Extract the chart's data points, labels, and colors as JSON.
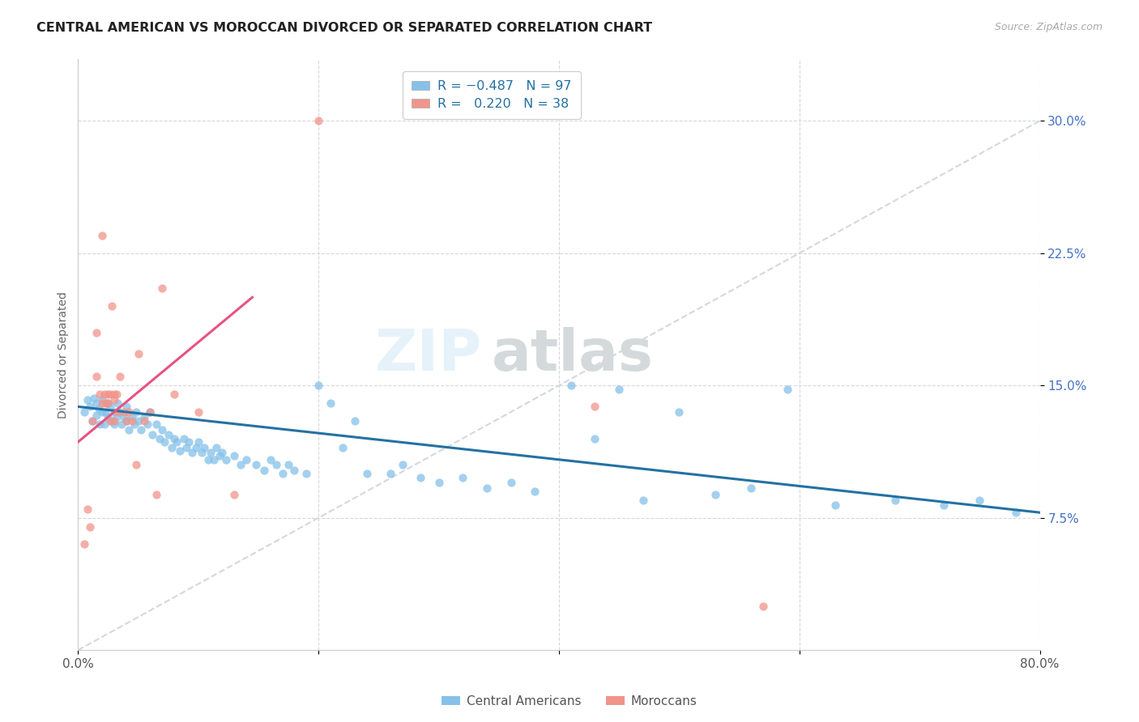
{
  "title": "CENTRAL AMERICAN VS MOROCCAN DIVORCED OR SEPARATED CORRELATION CHART",
  "source": "Source: ZipAtlas.com",
  "ylabel": "Divorced or Separated",
  "ytick_labels": [
    "7.5%",
    "15.0%",
    "22.5%",
    "30.0%"
  ],
  "ytick_values": [
    0.075,
    0.15,
    0.225,
    0.3
  ],
  "xlim": [
    0.0,
    0.8
  ],
  "ylim": [
    0.0,
    0.335
  ],
  "blue_color": "#85c1e9",
  "pink_color": "#f1948a",
  "blue_line_color": "#2471a3",
  "pink_line_color": "#e75480",
  "dashed_line_color": "#d5d8dc",
  "background_color": "#ffffff",
  "watermark_text": "ZIPatlas",
  "blue_scatter_x": [
    0.005,
    0.008,
    0.01,
    0.012,
    0.013,
    0.015,
    0.015,
    0.017,
    0.018,
    0.02,
    0.02,
    0.022,
    0.023,
    0.025,
    0.025,
    0.027,
    0.028,
    0.03,
    0.03,
    0.032,
    0.033,
    0.035,
    0.036,
    0.038,
    0.04,
    0.04,
    0.042,
    0.045,
    0.047,
    0.048,
    0.05,
    0.052,
    0.055,
    0.058,
    0.06,
    0.062,
    0.065,
    0.068,
    0.07,
    0.072,
    0.075,
    0.078,
    0.08,
    0.082,
    0.085,
    0.088,
    0.09,
    0.092,
    0.095,
    0.098,
    0.1,
    0.103,
    0.105,
    0.108,
    0.11,
    0.113,
    0.115,
    0.118,
    0.12,
    0.123,
    0.13,
    0.135,
    0.14,
    0.148,
    0.155,
    0.16,
    0.165,
    0.17,
    0.175,
    0.18,
    0.19,
    0.2,
    0.21,
    0.22,
    0.23,
    0.24,
    0.26,
    0.27,
    0.285,
    0.3,
    0.32,
    0.34,
    0.36,
    0.38,
    0.41,
    0.43,
    0.45,
    0.47,
    0.5,
    0.53,
    0.56,
    0.59,
    0.63,
    0.68,
    0.72,
    0.75,
    0.78
  ],
  "blue_scatter_y": [
    0.135,
    0.142,
    0.138,
    0.13,
    0.143,
    0.14,
    0.133,
    0.137,
    0.128,
    0.135,
    0.142,
    0.128,
    0.135,
    0.14,
    0.132,
    0.138,
    0.13,
    0.135,
    0.128,
    0.132,
    0.14,
    0.135,
    0.128,
    0.132,
    0.138,
    0.13,
    0.125,
    0.132,
    0.128,
    0.135,
    0.13,
    0.125,
    0.132,
    0.128,
    0.135,
    0.122,
    0.128,
    0.12,
    0.125,
    0.118,
    0.122,
    0.115,
    0.12,
    0.118,
    0.113,
    0.12,
    0.115,
    0.118,
    0.112,
    0.115,
    0.118,
    0.112,
    0.115,
    0.108,
    0.112,
    0.108,
    0.115,
    0.11,
    0.112,
    0.108,
    0.11,
    0.105,
    0.108,
    0.105,
    0.102,
    0.108,
    0.105,
    0.1,
    0.105,
    0.102,
    0.1,
    0.15,
    0.14,
    0.115,
    0.13,
    0.1,
    0.1,
    0.105,
    0.098,
    0.095,
    0.098,
    0.092,
    0.095,
    0.09,
    0.15,
    0.12,
    0.148,
    0.085,
    0.135,
    0.088,
    0.092,
    0.148,
    0.082,
    0.085,
    0.082,
    0.085,
    0.078
  ],
  "pink_scatter_x": [
    0.005,
    0.008,
    0.01,
    0.012,
    0.015,
    0.015,
    0.018,
    0.02,
    0.02,
    0.022,
    0.023,
    0.025,
    0.025,
    0.027,
    0.027,
    0.028,
    0.03,
    0.03,
    0.03,
    0.032,
    0.033,
    0.035,
    0.038,
    0.04,
    0.042,
    0.045,
    0.048,
    0.05,
    0.055,
    0.06,
    0.065,
    0.07,
    0.08,
    0.1,
    0.13,
    0.2,
    0.43,
    0.57
  ],
  "pink_scatter_y": [
    0.06,
    0.08,
    0.07,
    0.13,
    0.18,
    0.155,
    0.145,
    0.235,
    0.14,
    0.145,
    0.14,
    0.145,
    0.14,
    0.145,
    0.13,
    0.195,
    0.145,
    0.142,
    0.13,
    0.145,
    0.135,
    0.155,
    0.135,
    0.13,
    0.135,
    0.13,
    0.105,
    0.168,
    0.13,
    0.135,
    0.088,
    0.205,
    0.145,
    0.135,
    0.088,
    0.3,
    0.138,
    0.025
  ],
  "blue_trendline_x": [
    0.0,
    0.8
  ],
  "blue_trendline_y": [
    0.138,
    0.078
  ],
  "pink_trendline_x": [
    0.0,
    0.145
  ],
  "pink_trendline_y": [
    0.118,
    0.2
  ],
  "diag_line_x": [
    0.0,
    0.8
  ],
  "diag_line_y": [
    0.0,
    0.3
  ]
}
